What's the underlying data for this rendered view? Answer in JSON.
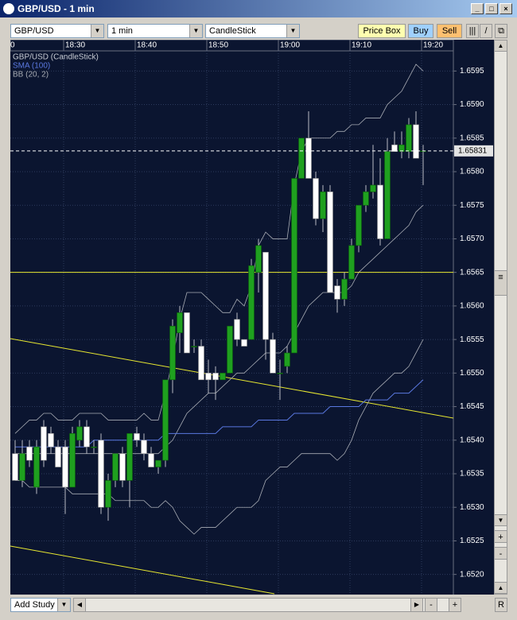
{
  "window": {
    "title": "GBP/USD - 1 min"
  },
  "toolbar": {
    "symbol": "GBP/USD",
    "interval": "1 min",
    "chart_style": "CandleStick",
    "price_box": "Price Box",
    "buy": "Buy",
    "sell": "Sell"
  },
  "footer": {
    "add_study": "Add Study",
    "reset": "R"
  },
  "chart_data": {
    "type": "candlestick",
    "name": "GBP/USD (CandleStick)",
    "up_color": "#1fa01f",
    "down_color": "#ffffff",
    "xaxis_clipped_label": "0",
    "categories": [
      null,
      null,
      null,
      null,
      null,
      null,
      null,
      "18:30",
      null,
      null,
      null,
      null,
      null,
      null,
      null,
      null,
      null,
      "18:40",
      null,
      null,
      null,
      null,
      null,
      null,
      null,
      null,
      null,
      "18:50",
      null,
      null,
      null,
      null,
      null,
      null,
      null,
      null,
      null,
      "19:00",
      null,
      null,
      null,
      null,
      null,
      null,
      null,
      null,
      null,
      "19:10",
      null,
      null,
      null,
      null,
      null,
      null,
      null,
      null,
      null,
      "19:20"
    ],
    "open": [
      1.6538,
      1.6534,
      1.6539,
      1.6533,
      1.6542,
      1.6541,
      1.6539,
      1.6539,
      1.6533,
      1.654,
      1.6542,
      1.6539,
      1.654,
      1.653,
      1.6534,
      1.6538,
      1.6534,
      1.6541,
      1.654,
      1.6538,
      1.6536,
      1.6537,
      1.6549,
      1.6556,
      1.6559,
      1.6554,
      1.6554,
      1.655,
      1.655,
      1.6549,
      1.655,
      1.6558,
      1.6555,
      1.6555,
      1.6565,
      1.6568,
      1.6555,
      1.655,
      1.6551,
      1.6553,
      1.6579,
      1.6585,
      1.6579,
      1.6573,
      1.6577,
      1.6563,
      1.6561,
      1.6564,
      1.6569,
      1.6575,
      1.6577,
      1.6578,
      1.657,
      1.6584,
      1.6583,
      1.6583,
      1.6587,
      1.6583
    ],
    "high": [
      1.654,
      1.654,
      1.654,
      1.654,
      1.6543,
      1.6542,
      1.654,
      1.654,
      1.6542,
      1.6543,
      1.6543,
      1.654,
      1.6541,
      1.6535,
      1.6538,
      1.6539,
      1.6541,
      1.6542,
      1.6541,
      1.6539,
      1.6537,
      1.6549,
      1.6558,
      1.656,
      1.6559,
      1.6555,
      1.6555,
      1.6552,
      1.6551,
      1.655,
      1.6557,
      1.6559,
      1.6555,
      1.6567,
      1.657,
      1.6568,
      1.6556,
      1.6552,
      1.6554,
      1.6579,
      1.6585,
      1.6589,
      1.658,
      1.6578,
      1.6578,
      1.6564,
      1.6565,
      1.657,
      1.6575,
      1.6578,
      1.6584,
      1.6582,
      1.6585,
      1.6586,
      1.6586,
      1.6588,
      1.6589,
      1.6584
    ],
    "low": [
      1.6534,
      1.6533,
      1.6536,
      1.6532,
      1.6536,
      1.6538,
      1.6536,
      1.6529,
      1.6533,
      1.6539,
      1.6538,
      1.6538,
      1.6529,
      1.6528,
      1.6533,
      1.6533,
      1.653,
      1.6539,
      1.6537,
      1.6536,
      1.6535,
      1.6536,
      1.6547,
      1.6553,
      1.6553,
      1.6553,
      1.6549,
      1.6547,
      1.6546,
      1.6549,
      1.655,
      1.6554,
      1.6554,
      1.6555,
      1.6562,
      1.6552,
      1.655,
      1.6546,
      1.655,
      1.6553,
      1.6579,
      1.6579,
      1.6572,
      1.6571,
      1.6562,
      1.6559,
      1.656,
      1.6564,
      1.6568,
      1.6574,
      1.6576,
      1.6569,
      1.657,
      1.6583,
      1.6582,
      1.6582,
      1.6582,
      1.6578
    ],
    "close": [
      1.6534,
      1.6538,
      1.6537,
      1.6539,
      1.6537,
      1.6539,
      1.6536,
      1.6533,
      1.6541,
      1.6542,
      1.6539,
      1.6539,
      1.653,
      1.6534,
      1.6538,
      1.6534,
      1.6541,
      1.654,
      1.6538,
      1.6536,
      1.6537,
      1.6549,
      1.6557,
      1.6559,
      1.6553,
      1.6554,
      1.6549,
      1.6549,
      1.6549,
      1.655,
      1.6557,
      1.6555,
      1.6554,
      1.6566,
      1.6569,
      1.6555,
      1.655,
      1.655,
      1.6553,
      1.6579,
      1.6585,
      1.6579,
      1.6573,
      1.6577,
      1.6562,
      1.6561,
      1.6564,
      1.6569,
      1.6575,
      1.6577,
      1.6578,
      1.657,
      1.6583,
      1.6583,
      1.6584,
      1.6587,
      1.6582,
      1.65831
    ],
    "series": [
      {
        "name": "SMA (100)",
        "color": "#5a78e0",
        "values": [
          1.6539,
          1.6539,
          1.6539,
          1.6539,
          1.6539,
          1.6539,
          1.6539,
          1.6539,
          1.6539,
          1.6539,
          1.6539,
          1.654,
          1.654,
          1.654,
          1.654,
          1.654,
          1.654,
          1.654,
          1.654,
          1.654,
          1.654,
          1.6541,
          1.6541,
          1.6541,
          1.6541,
          1.6541,
          1.6541,
          1.6541,
          1.6541,
          1.6542,
          1.6542,
          1.6542,
          1.6542,
          1.6542,
          1.6543,
          1.6543,
          1.6543,
          1.6543,
          1.6543,
          1.6544,
          1.6544,
          1.6544,
          1.6544,
          1.6544,
          1.6545,
          1.6545,
          1.6545,
          1.6545,
          1.6545,
          1.6546,
          1.6546,
          1.6546,
          1.6546,
          1.6547,
          1.6547,
          1.6547,
          1.6548,
          1.6549
        ]
      },
      {
        "name": "BB (20, 2)",
        "color": "#a8acb4",
        "upper": [
          1.6541,
          1.6542,
          1.6543,
          1.6543,
          1.6544,
          1.6544,
          1.6543,
          1.6543,
          1.6543,
          1.6544,
          1.6544,
          1.6544,
          1.6544,
          1.6543,
          1.6543,
          1.6543,
          1.6543,
          1.6543,
          1.6544,
          1.6543,
          1.6543,
          1.6547,
          1.6552,
          1.6558,
          1.6562,
          1.6562,
          1.6562,
          1.6561,
          1.656,
          1.6559,
          1.6559,
          1.6561,
          1.656,
          1.6563,
          1.6569,
          1.6571,
          1.657,
          1.657,
          1.657,
          1.6578,
          1.6583,
          1.6585,
          1.6585,
          1.6585,
          1.6585,
          1.6586,
          1.6586,
          1.6587,
          1.6587,
          1.6588,
          1.6588,
          1.6588,
          1.659,
          1.6591,
          1.6592,
          1.6594,
          1.6596,
          1.6595
        ],
        "middle": [
          1.6538,
          1.6538,
          1.6538,
          1.6538,
          1.6538,
          1.6538,
          1.6538,
          1.6538,
          1.6538,
          1.6538,
          1.6538,
          1.6538,
          1.6538,
          1.6538,
          1.6538,
          1.6538,
          1.6538,
          1.6538,
          1.6538,
          1.6538,
          1.6538,
          1.6539,
          1.654,
          1.6542,
          1.6544,
          1.6545,
          1.6546,
          1.6547,
          1.6547,
          1.6548,
          1.6549,
          1.655,
          1.655,
          1.6551,
          1.6552,
          1.6553,
          1.6553,
          1.6553,
          1.6554,
          1.6556,
          1.6558,
          1.656,
          1.6561,
          1.6562,
          1.6562,
          1.6562,
          1.6562,
          1.6563,
          1.6565,
          1.6566,
          1.6567,
          1.6568,
          1.6569,
          1.657,
          1.6571,
          1.6572,
          1.6574,
          1.6575
        ],
        "lower": [
          1.6534,
          1.6534,
          1.6533,
          1.6533,
          1.6533,
          1.6533,
          1.6533,
          1.6533,
          1.6532,
          1.6532,
          1.6532,
          1.6532,
          1.6532,
          1.6532,
          1.6531,
          1.6531,
          1.6531,
          1.6531,
          1.6531,
          1.653,
          1.653,
          1.6531,
          1.653,
          1.6528,
          1.6527,
          1.6526,
          1.6527,
          1.6527,
          1.6527,
          1.6528,
          1.6529,
          1.653,
          1.653,
          1.653,
          1.6531,
          1.6534,
          1.6535,
          1.6536,
          1.6536,
          1.6537,
          1.6538,
          1.6538,
          1.6538,
          1.6538,
          1.6538,
          1.6537,
          1.6538,
          1.654,
          1.6543,
          1.6545,
          1.6547,
          1.6548,
          1.6549,
          1.655,
          1.655,
          1.6551,
          1.6553,
          1.6555
        ]
      }
    ],
    "hline": 1.6565,
    "hline_color": "#e8e830",
    "ylim": [
      1.6517,
      1.6598
    ],
    "yticks": [
      {
        "value": 1.652,
        "label": "1.6520"
      },
      1.6525,
      {
        "value": 1.653,
        "label": "1.6530"
      },
      1.6535,
      {
        "value": 1.654,
        "label": "1.6540"
      },
      1.6545,
      {
        "value": 1.655,
        "label": "1.6550"
      },
      1.6555,
      {
        "value": 1.656,
        "label": "1.6560"
      },
      1.6565,
      {
        "value": 1.657,
        "label": "1.6570"
      },
      1.6575,
      {
        "value": 1.658,
        "label": "1.6580"
      },
      1.6585,
      {
        "value": 1.659,
        "label": "1.6590"
      },
      1.6595
    ],
    "grid": true
  }
}
